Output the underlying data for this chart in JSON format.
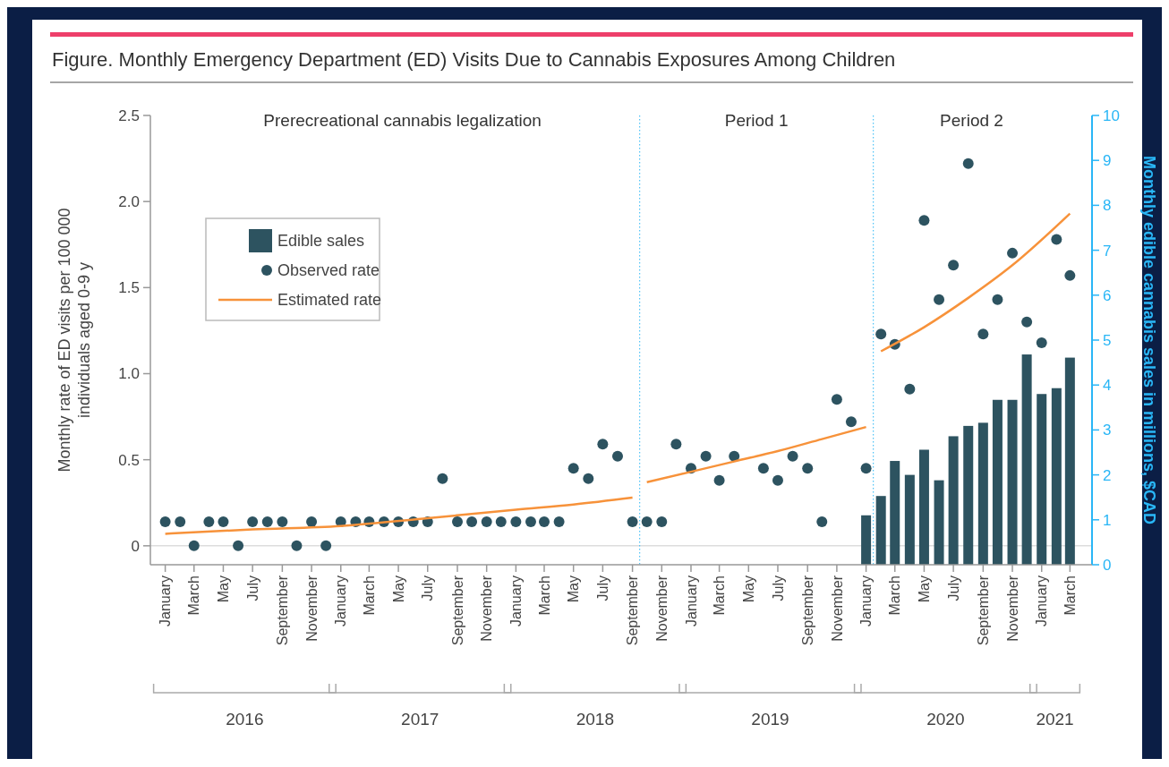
{
  "chart_data": {
    "type": "bar",
    "title": "Figure. Monthly Emergency Department (ED) Visits Due to Cannabis Exposures Among Children",
    "ylabel": "Monthly rate of ED visits per 100 000 individuals aged 0-9 y",
    "y2label": "Monthly edible cannabis sales in millions, $CAD",
    "x": [
      "2016-01",
      "2016-02",
      "2016-03",
      "2016-04",
      "2016-05",
      "2016-06",
      "2016-07",
      "2016-08",
      "2016-09",
      "2016-10",
      "2016-11",
      "2016-12",
      "2017-01",
      "2017-02",
      "2017-03",
      "2017-04",
      "2017-05",
      "2017-06",
      "2017-07",
      "2017-08",
      "2017-09",
      "2017-10",
      "2017-11",
      "2017-12",
      "2018-01",
      "2018-02",
      "2018-03",
      "2018-04",
      "2018-05",
      "2018-06",
      "2018-07",
      "2018-08",
      "2018-09",
      "2018-10",
      "2018-11",
      "2018-12",
      "2019-01",
      "2019-02",
      "2019-03",
      "2019-04",
      "2019-05",
      "2019-06",
      "2019-07",
      "2019-08",
      "2019-09",
      "2019-10",
      "2019-11",
      "2019-12",
      "2020-01",
      "2020-02",
      "2020-03",
      "2020-04",
      "2020-05",
      "2020-06",
      "2020-07",
      "2020-08",
      "2020-09",
      "2020-10",
      "2020-11",
      "2020-12",
      "2021-01",
      "2021-02",
      "2021-03"
    ],
    "series": [
      {
        "name": "Edible sales",
        "axis": "y2",
        "color": "#2d5360",
        "values": [
          null,
          null,
          null,
          null,
          null,
          null,
          null,
          null,
          null,
          null,
          null,
          null,
          null,
          null,
          null,
          null,
          null,
          null,
          null,
          null,
          null,
          null,
          null,
          null,
          null,
          null,
          null,
          null,
          null,
          null,
          null,
          null,
          null,
          null,
          null,
          null,
          null,
          null,
          null,
          null,
          null,
          null,
          null,
          null,
          null,
          null,
          null,
          null,
          1.1,
          1.53,
          2.31,
          2.0,
          2.56,
          1.88,
          2.86,
          3.09,
          3.16,
          3.67,
          3.67,
          4.68,
          3.8,
          3.93,
          4.61
        ]
      },
      {
        "name": "Observed rate",
        "type": "scatter",
        "marker": "circle",
        "color": "#2d5360",
        "values": [
          0.14,
          0.14,
          0,
          0.14,
          0.14,
          0,
          0.14,
          0.14,
          0.14,
          0,
          0.14,
          0,
          0.14,
          0.14,
          0.14,
          0.14,
          0.14,
          0.14,
          0.14,
          0.39,
          0.14,
          0.14,
          0.14,
          0.14,
          0.14,
          0.14,
          0.14,
          0.14,
          0.45,
          0.39,
          0.59,
          0.52,
          0.14,
          0.14,
          0.14,
          0.59,
          0.45,
          0.52,
          0.38,
          0.52,
          null,
          0.45,
          0.38,
          0.52,
          0.45,
          0.14,
          0.85,
          0.72,
          0.45,
          1.23,
          1.17,
          0.91,
          1.89,
          1.43,
          1.63,
          2.22,
          1.23,
          1.43,
          1.7,
          1.3,
          1.18,
          1.78,
          1.57
        ]
      },
      {
        "name": "Estimated rate",
        "type": "line",
        "line_style": "solid",
        "color": "#f7923a",
        "x": [
          "2016-01",
          "2016-07",
          "2017-01",
          "2017-07",
          "2018-01",
          "2018-05",
          "2018-09",
          "2018-09-16",
          "2018-10",
          "2019-01",
          "2019-04",
          "2019-07",
          "2019-10",
          "2020-01",
          "2020-01-16",
          "2020-02",
          "2020-05",
          "2020-08",
          "2020-11",
          "2021-03"
        ],
        "values": [
          0.07,
          0.095,
          0.115,
          0.16,
          0.21,
          0.24,
          0.28,
          null,
          0.37,
          0.43,
          0.49,
          0.55,
          0.62,
          0.69,
          null,
          1.13,
          1.27,
          1.44,
          1.63,
          1.93
        ]
      }
    ],
    "xlim": [
      "2015-12-01",
      "2021-04-16"
    ],
    "xticks": [
      {
        "value": "2016-01",
        "label": "January"
      },
      {
        "value": "2016-03",
        "label": "March"
      },
      {
        "value": "2016-05",
        "label": "May"
      },
      {
        "value": "2016-07",
        "label": "July"
      },
      {
        "value": "2016-09",
        "label": "September"
      },
      {
        "value": "2016-11",
        "label": "November"
      },
      {
        "value": "2017-01",
        "label": "January"
      },
      {
        "value": "2017-03",
        "label": "March"
      },
      {
        "value": "2017-05",
        "label": "May"
      },
      {
        "value": "2017-07",
        "label": "July"
      },
      {
        "value": "2017-09",
        "label": "September"
      },
      {
        "value": "2017-11",
        "label": "November"
      },
      {
        "value": "2018-01",
        "label": "January"
      },
      {
        "value": "2018-03",
        "label": "March"
      },
      {
        "value": "2018-05",
        "label": "May"
      },
      {
        "value": "2018-07",
        "label": "July"
      },
      {
        "value": "2018-09",
        "label": "September"
      },
      {
        "value": "2018-11",
        "label": "November"
      },
      {
        "value": "2019-01",
        "label": "January"
      },
      {
        "value": "2019-03",
        "label": "March"
      },
      {
        "value": "2019-05",
        "label": "May"
      },
      {
        "value": "2019-07",
        "label": "July"
      },
      {
        "value": "2019-09",
        "label": "September"
      },
      {
        "value": "2019-11",
        "label": "November"
      },
      {
        "value": "2020-01",
        "label": "January"
      },
      {
        "value": "2020-03",
        "label": "March"
      },
      {
        "value": "2020-05",
        "label": "May"
      },
      {
        "value": "2020-07",
        "label": "July"
      },
      {
        "value": "2020-09",
        "label": "September"
      },
      {
        "value": "2020-11",
        "label": "November"
      },
      {
        "value": "2021-01",
        "label": "January"
      },
      {
        "value": "2021-03",
        "label": "March"
      }
    ],
    "ylim": [
      -0.11,
      2.5
    ],
    "yticks": [
      0,
      0.5,
      {
        "value": 1,
        "label": "1.0"
      },
      1.5,
      {
        "value": 2,
        "label": "2.0"
      },
      2.5
    ],
    "y2lim": [
      0,
      10
    ],
    "y2ticks": [
      0,
      1,
      2,
      3,
      4,
      5,
      6,
      7,
      8,
      9,
      10
    ],
    "ref_lines": [
      {
        "axis": "y",
        "value": 0,
        "color": "#dddddd",
        "line_style": "solid"
      },
      {
        "axis": "x",
        "value": "2018-09-16",
        "color": "#4fc3f7",
        "line_style": "dotted"
      },
      {
        "axis": "x",
        "value": "2020-01-16",
        "color": "#4fc3f7",
        "line_style": "dotted"
      }
    ],
    "annotations": [
      "Prerecreational cannabis legalization",
      "Period 1",
      "Period 2",
      "2016",
      "2017",
      "2018",
      "2019",
      "2020",
      "2021"
    ],
    "legend": "top left",
    "grid": false
  }
}
